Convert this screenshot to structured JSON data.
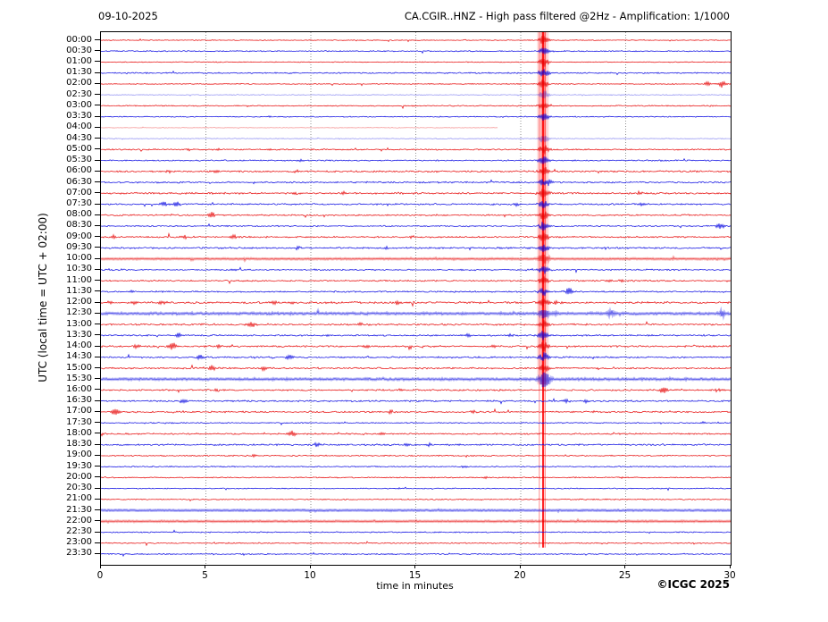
{
  "chart_data": {
    "type": "line",
    "kind": "helicorder-seismogram",
    "title_left": "09-10-2025",
    "title_right": "CA.CGIR..HNZ - High pass filtered @2Hz - Amplification: 1/1000",
    "ylabel": "UTC (local time = UTC + 02:00)",
    "xlabel": "time in minutes",
    "copyright": "©ICGC 2025",
    "xlim": [
      0,
      30
    ],
    "x_ticks": [
      "0",
      "5",
      "10",
      "15",
      "20",
      "25",
      "30"
    ],
    "x_tick_minutes": [
      0,
      5,
      10,
      15,
      20,
      25,
      30
    ],
    "grid_minutes": [
      5,
      10,
      15,
      20,
      25
    ],
    "legend": "none",
    "grid": "vertical dotted every 5 minutes",
    "palette": {
      "red": "#e60000",
      "blue": "#0000e0",
      "event_red": "#ff0000",
      "grid": "#777777",
      "frame": "#000000"
    },
    "main_event": {
      "minute": 21.1,
      "band_rows_from": "00:00",
      "band_rows_to": "15:30",
      "thin_lines_to": "23:00",
      "spike_amp": 5.5
    },
    "rows": [
      {
        "time": "00:00",
        "color": "red",
        "style": "thin",
        "noise": 0.5,
        "events": []
      },
      {
        "time": "00:30",
        "color": "blue",
        "style": "thin",
        "noise": 0.7,
        "events": []
      },
      {
        "time": "01:00",
        "color": "red",
        "style": "thin",
        "noise": 0.5,
        "events": []
      },
      {
        "time": "01:30",
        "color": "blue",
        "style": "thin",
        "noise": 0.8,
        "events": []
      },
      {
        "time": "02:00",
        "color": "red",
        "style": "thin",
        "noise": 0.6,
        "events": [
          [
            28.9,
            2.5
          ],
          [
            29.6,
            4
          ]
        ]
      },
      {
        "time": "02:30",
        "color": "blue",
        "style": "faded",
        "noise": 0.5,
        "events": []
      },
      {
        "time": "03:00",
        "color": "red",
        "style": "thin",
        "noise": 0.7,
        "events": []
      },
      {
        "time": "03:30",
        "color": "blue",
        "style": "thin",
        "noise": 0.6,
        "events": [
          [
            8.0,
            1.2
          ]
        ]
      },
      {
        "time": "04:00",
        "color": "red",
        "style": "faded",
        "noise": 0.4,
        "events": [],
        "gap_end_minute": 18.9
      },
      {
        "time": "04:30",
        "color": "blue",
        "style": "faded",
        "noise": 0.5,
        "events": []
      },
      {
        "time": "05:00",
        "color": "red",
        "style": "thin",
        "noise": 0.8,
        "events": [
          [
            4.2,
            1.5
          ],
          [
            5.6,
            1.5
          ],
          [
            8.0,
            1.2
          ]
        ]
      },
      {
        "time": "05:30",
        "color": "blue",
        "style": "thin",
        "noise": 0.8,
        "events": [
          [
            9.5,
            1.5
          ]
        ]
      },
      {
        "time": "06:00",
        "color": "red",
        "style": "thin",
        "noise": 1.0,
        "events": [
          [
            3.2,
            1.8
          ],
          [
            5.5,
            1.5
          ],
          [
            9.3,
            2
          ]
        ]
      },
      {
        "time": "06:30",
        "color": "blue",
        "style": "thin",
        "noise": 1.0,
        "events": [
          [
            16.5,
            1.5
          ],
          [
            21.4,
            2.5
          ]
        ]
      },
      {
        "time": "07:00",
        "color": "red",
        "style": "thin",
        "noise": 1.1,
        "events": [
          [
            9.3,
            2
          ],
          [
            11.6,
            1.8
          ],
          [
            25.7,
            2
          ]
        ]
      },
      {
        "time": "07:30",
        "color": "blue",
        "style": "thin",
        "noise": 1.0,
        "events": [
          [
            3.0,
            3.5
          ],
          [
            3.6,
            3.5
          ],
          [
            19.8,
            2
          ],
          [
            25.8,
            2
          ]
        ]
      },
      {
        "time": "08:00",
        "color": "red",
        "style": "thin",
        "noise": 0.9,
        "events": [
          [
            5.3,
            3.5
          ],
          [
            18.5,
            1.5
          ]
        ]
      },
      {
        "time": "08:30",
        "color": "blue",
        "style": "thin",
        "noise": 0.8,
        "events": [
          [
            29.5,
            4
          ]
        ]
      },
      {
        "time": "09:00",
        "color": "red",
        "style": "thin",
        "noise": 1.0,
        "events": [
          [
            0.6,
            2
          ],
          [
            4.0,
            2.5
          ],
          [
            6.3,
            2.5
          ],
          [
            14.8,
            1.5
          ]
        ]
      },
      {
        "time": "09:30",
        "color": "blue",
        "style": "thin",
        "noise": 1.0,
        "events": [
          [
            9.4,
            2.5
          ],
          [
            13.6,
            2
          ],
          [
            19.0,
            1.5
          ]
        ]
      },
      {
        "time": "10:00",
        "color": "red",
        "style": "band",
        "noise": 0.5,
        "events": []
      },
      {
        "time": "10:30",
        "color": "blue",
        "style": "thin",
        "noise": 0.9,
        "events": [
          [
            6.3,
            1.5
          ]
        ]
      },
      {
        "time": "11:00",
        "color": "red",
        "style": "thin",
        "noise": 0.9,
        "events": [
          [
            24.2,
            2
          ],
          [
            24.8,
            2
          ]
        ]
      },
      {
        "time": "11:30",
        "color": "blue",
        "style": "thin",
        "noise": 0.9,
        "events": [
          [
            1.5,
            1.5
          ],
          [
            22.3,
            4.5
          ]
        ]
      },
      {
        "time": "12:00",
        "color": "red",
        "style": "thin",
        "noise": 1.3,
        "events": [
          [
            0.4,
            2
          ],
          [
            1.6,
            2.5
          ],
          [
            2.9,
            2.5
          ],
          [
            8.2,
            2.5
          ],
          [
            9.1,
            2
          ],
          [
            14.1,
            2
          ],
          [
            21.7,
            2
          ]
        ]
      },
      {
        "time": "12:30",
        "color": "blue",
        "style": "band",
        "noise": 0.9,
        "events": [
          [
            21.6,
            2
          ],
          [
            24.3,
            3
          ],
          [
            29.6,
            3
          ]
        ]
      },
      {
        "time": "13:00",
        "color": "red",
        "style": "thin",
        "noise": 1.1,
        "events": [
          [
            7.2,
            4
          ],
          [
            12.4,
            2
          ]
        ]
      },
      {
        "time": "13:30",
        "color": "blue",
        "style": "thin",
        "noise": 1.0,
        "events": [
          [
            3.7,
            2.5
          ],
          [
            10.8,
            1.5
          ],
          [
            17.5,
            2
          ],
          [
            19.5,
            2
          ]
        ]
      },
      {
        "time": "14:00",
        "color": "red",
        "style": "thin",
        "noise": 1.1,
        "events": [
          [
            1.7,
            2.5
          ],
          [
            3.4,
            4.5
          ],
          [
            5.6,
            2
          ],
          [
            12.6,
            2
          ],
          [
            18.7,
            2
          ]
        ]
      },
      {
        "time": "14:30",
        "color": "blue",
        "style": "thin",
        "noise": 1.0,
        "events": [
          [
            4.7,
            2.5
          ],
          [
            9.0,
            3.5
          ]
        ]
      },
      {
        "time": "15:00",
        "color": "red",
        "style": "thin",
        "noise": 1.0,
        "events": [
          [
            5.3,
            3
          ],
          [
            7.8,
            3
          ]
        ]
      },
      {
        "time": "15:30",
        "color": "blue",
        "style": "band",
        "noise": 0.8,
        "events": [
          [
            21.2,
            5
          ]
        ]
      },
      {
        "time": "16:00",
        "color": "red",
        "style": "thin",
        "noise": 1.0,
        "events": [
          [
            5.5,
            2
          ],
          [
            14.3,
            2
          ],
          [
            26.8,
            4
          ],
          [
            29.4,
            2.5
          ]
        ]
      },
      {
        "time": "16:30",
        "color": "blue",
        "style": "thin",
        "noise": 1.0,
        "events": [
          [
            3.9,
            2.5
          ],
          [
            22.2,
            2.5
          ],
          [
            23.1,
            2
          ]
        ]
      },
      {
        "time": "17:00",
        "color": "red",
        "style": "thin",
        "noise": 1.0,
        "events": [
          [
            0.7,
            4
          ],
          [
            13.8,
            2
          ],
          [
            17.7,
            1.5
          ]
        ]
      },
      {
        "time": "17:30",
        "color": "blue",
        "style": "thin",
        "noise": 0.7,
        "events": [
          [
            28.7,
            1.5
          ]
        ]
      },
      {
        "time": "18:00",
        "color": "red",
        "style": "thin",
        "noise": 0.9,
        "events": [
          [
            9.1,
            3.5
          ],
          [
            13.4,
            2
          ]
        ]
      },
      {
        "time": "18:30",
        "color": "blue",
        "style": "thin",
        "noise": 1.0,
        "events": [
          [
            10.3,
            2.5
          ],
          [
            14.6,
            1.8
          ],
          [
            15.6,
            1.8
          ]
        ]
      },
      {
        "time": "19:00",
        "color": "red",
        "style": "thin",
        "noise": 0.8,
        "events": [
          [
            7.3,
            1.8
          ]
        ]
      },
      {
        "time": "19:30",
        "color": "blue",
        "style": "thin",
        "noise": 0.7,
        "events": [
          [
            17.3,
            1.5
          ]
        ]
      },
      {
        "time": "20:00",
        "color": "red",
        "style": "thin",
        "noise": 0.7,
        "events": [
          [
            18.3,
            1.2
          ],
          [
            24.8,
            1.2
          ]
        ]
      },
      {
        "time": "20:30",
        "color": "blue",
        "style": "thin",
        "noise": 0.6,
        "events": []
      },
      {
        "time": "21:00",
        "color": "red",
        "style": "thin",
        "noise": 0.7,
        "events": []
      },
      {
        "time": "21:30",
        "color": "blue",
        "style": "band",
        "noise": 0.5,
        "events": []
      },
      {
        "time": "22:00",
        "color": "red",
        "style": "band",
        "noise": 0.5,
        "events": []
      },
      {
        "time": "22:30",
        "color": "blue",
        "style": "thin",
        "noise": 0.7,
        "events": []
      },
      {
        "time": "23:00",
        "color": "red",
        "style": "thin",
        "noise": 0.7,
        "events": []
      },
      {
        "time": "23:30",
        "color": "blue",
        "style": "thin",
        "noise": 0.7,
        "events": []
      }
    ]
  }
}
